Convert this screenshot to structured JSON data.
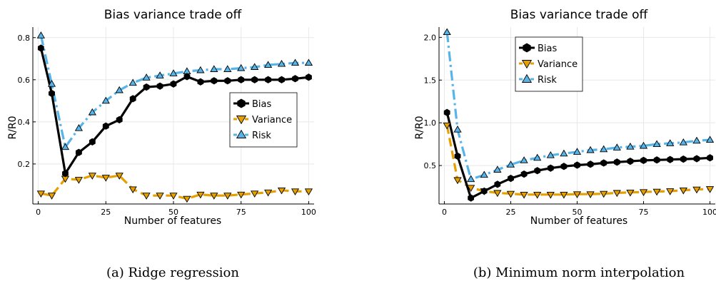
{
  "chart_data": [
    {
      "type": "line",
      "title": "Bias variance trade off",
      "xlabel": "Number of features",
      "ylabel": "R/R0",
      "caption": "(a) Ridge regression",
      "xlim": [
        -2,
        102
      ],
      "ylim": [
        0.01,
        0.85
      ],
      "xticks": [
        0,
        25,
        50,
        75,
        100
      ],
      "xtick_labels": [
        "0",
        "25",
        "50",
        "75",
        "100"
      ],
      "yticks": [
        0.2,
        0.4,
        0.6,
        0.8
      ],
      "ytick_labels": [
        "0.2",
        "0.4",
        "0.6",
        "0.8"
      ],
      "grid": true,
      "legend_position": "right",
      "x": [
        1,
        5,
        10,
        15,
        20,
        25,
        30,
        35,
        40,
        45,
        50,
        55,
        60,
        65,
        70,
        75,
        80,
        85,
        90,
        95,
        100
      ],
      "series": [
        {
          "name": "Bias",
          "color": "#000000",
          "marker": "hexagon",
          "dash": "solid",
          "values": [
            0.75,
            0.535,
            0.155,
            0.255,
            0.305,
            0.38,
            0.41,
            0.51,
            0.565,
            0.57,
            0.58,
            0.615,
            0.59,
            0.595,
            0.595,
            0.6,
            0.6,
            0.6,
            0.6,
            0.605,
            0.612
          ]
        },
        {
          "name": "Variance",
          "color": "#e69f00",
          "marker": "triangle-down",
          "dash": "dash",
          "values": [
            0.06,
            0.05,
            0.13,
            0.125,
            0.145,
            0.135,
            0.145,
            0.08,
            0.05,
            0.05,
            0.05,
            0.035,
            0.055,
            0.05,
            0.05,
            0.055,
            0.06,
            0.065,
            0.075,
            0.07,
            0.07
          ]
        },
        {
          "name": "Risk",
          "color": "#56b4e9",
          "marker": "triangle-up",
          "dash": "dashdot",
          "values": [
            0.81,
            0.58,
            0.28,
            0.37,
            0.445,
            0.5,
            0.55,
            0.585,
            0.61,
            0.62,
            0.63,
            0.64,
            0.645,
            0.65,
            0.65,
            0.655,
            0.66,
            0.67,
            0.675,
            0.68,
            0.68
          ]
        }
      ]
    },
    {
      "type": "line",
      "title": "Bias variance trade off",
      "xlabel": "Number of features",
      "ylabel": "R/R0",
      "caption": "(b) Minimum norm interpolation",
      "xlim": [
        -2,
        102
      ],
      "ylim": [
        0.05,
        2.12
      ],
      "xticks": [
        0,
        25,
        50,
        75,
        100
      ],
      "xtick_labels": [
        "0",
        "25",
        "50",
        "75",
        "100"
      ],
      "yticks": [
        0.5,
        1.0,
        1.5,
        2.0
      ],
      "ytick_labels": [
        "0.5",
        "1.0",
        "1.5",
        "2.0"
      ],
      "grid": true,
      "legend_position": "top-left",
      "x": [
        1,
        5,
        10,
        15,
        20,
        25,
        30,
        35,
        40,
        45,
        50,
        55,
        60,
        65,
        70,
        75,
        80,
        85,
        90,
        95,
        100
      ],
      "series": [
        {
          "name": "Bias",
          "color": "#000000",
          "marker": "hexagon",
          "dash": "solid",
          "values": [
            1.12,
            0.61,
            0.12,
            0.2,
            0.28,
            0.35,
            0.4,
            0.44,
            0.47,
            0.49,
            0.505,
            0.515,
            0.53,
            0.54,
            0.55,
            0.56,
            0.565,
            0.57,
            0.575,
            0.58,
            0.59
          ]
        },
        {
          "name": "Variance",
          "color": "#e69f00",
          "marker": "triangle-down",
          "dash": "dash",
          "values": [
            0.97,
            0.33,
            0.24,
            0.2,
            0.18,
            0.17,
            0.16,
            0.16,
            0.16,
            0.16,
            0.165,
            0.165,
            0.17,
            0.18,
            0.185,
            0.19,
            0.195,
            0.2,
            0.21,
            0.22,
            0.225
          ]
        },
        {
          "name": "Risk",
          "color": "#56b4e9",
          "marker": "triangle-up",
          "dash": "dashdot",
          "values": [
            2.06,
            0.92,
            0.34,
            0.39,
            0.45,
            0.51,
            0.56,
            0.59,
            0.62,
            0.64,
            0.66,
            0.68,
            0.69,
            0.71,
            0.72,
            0.73,
            0.75,
            0.76,
            0.77,
            0.79,
            0.8
          ]
        }
      ]
    }
  ]
}
